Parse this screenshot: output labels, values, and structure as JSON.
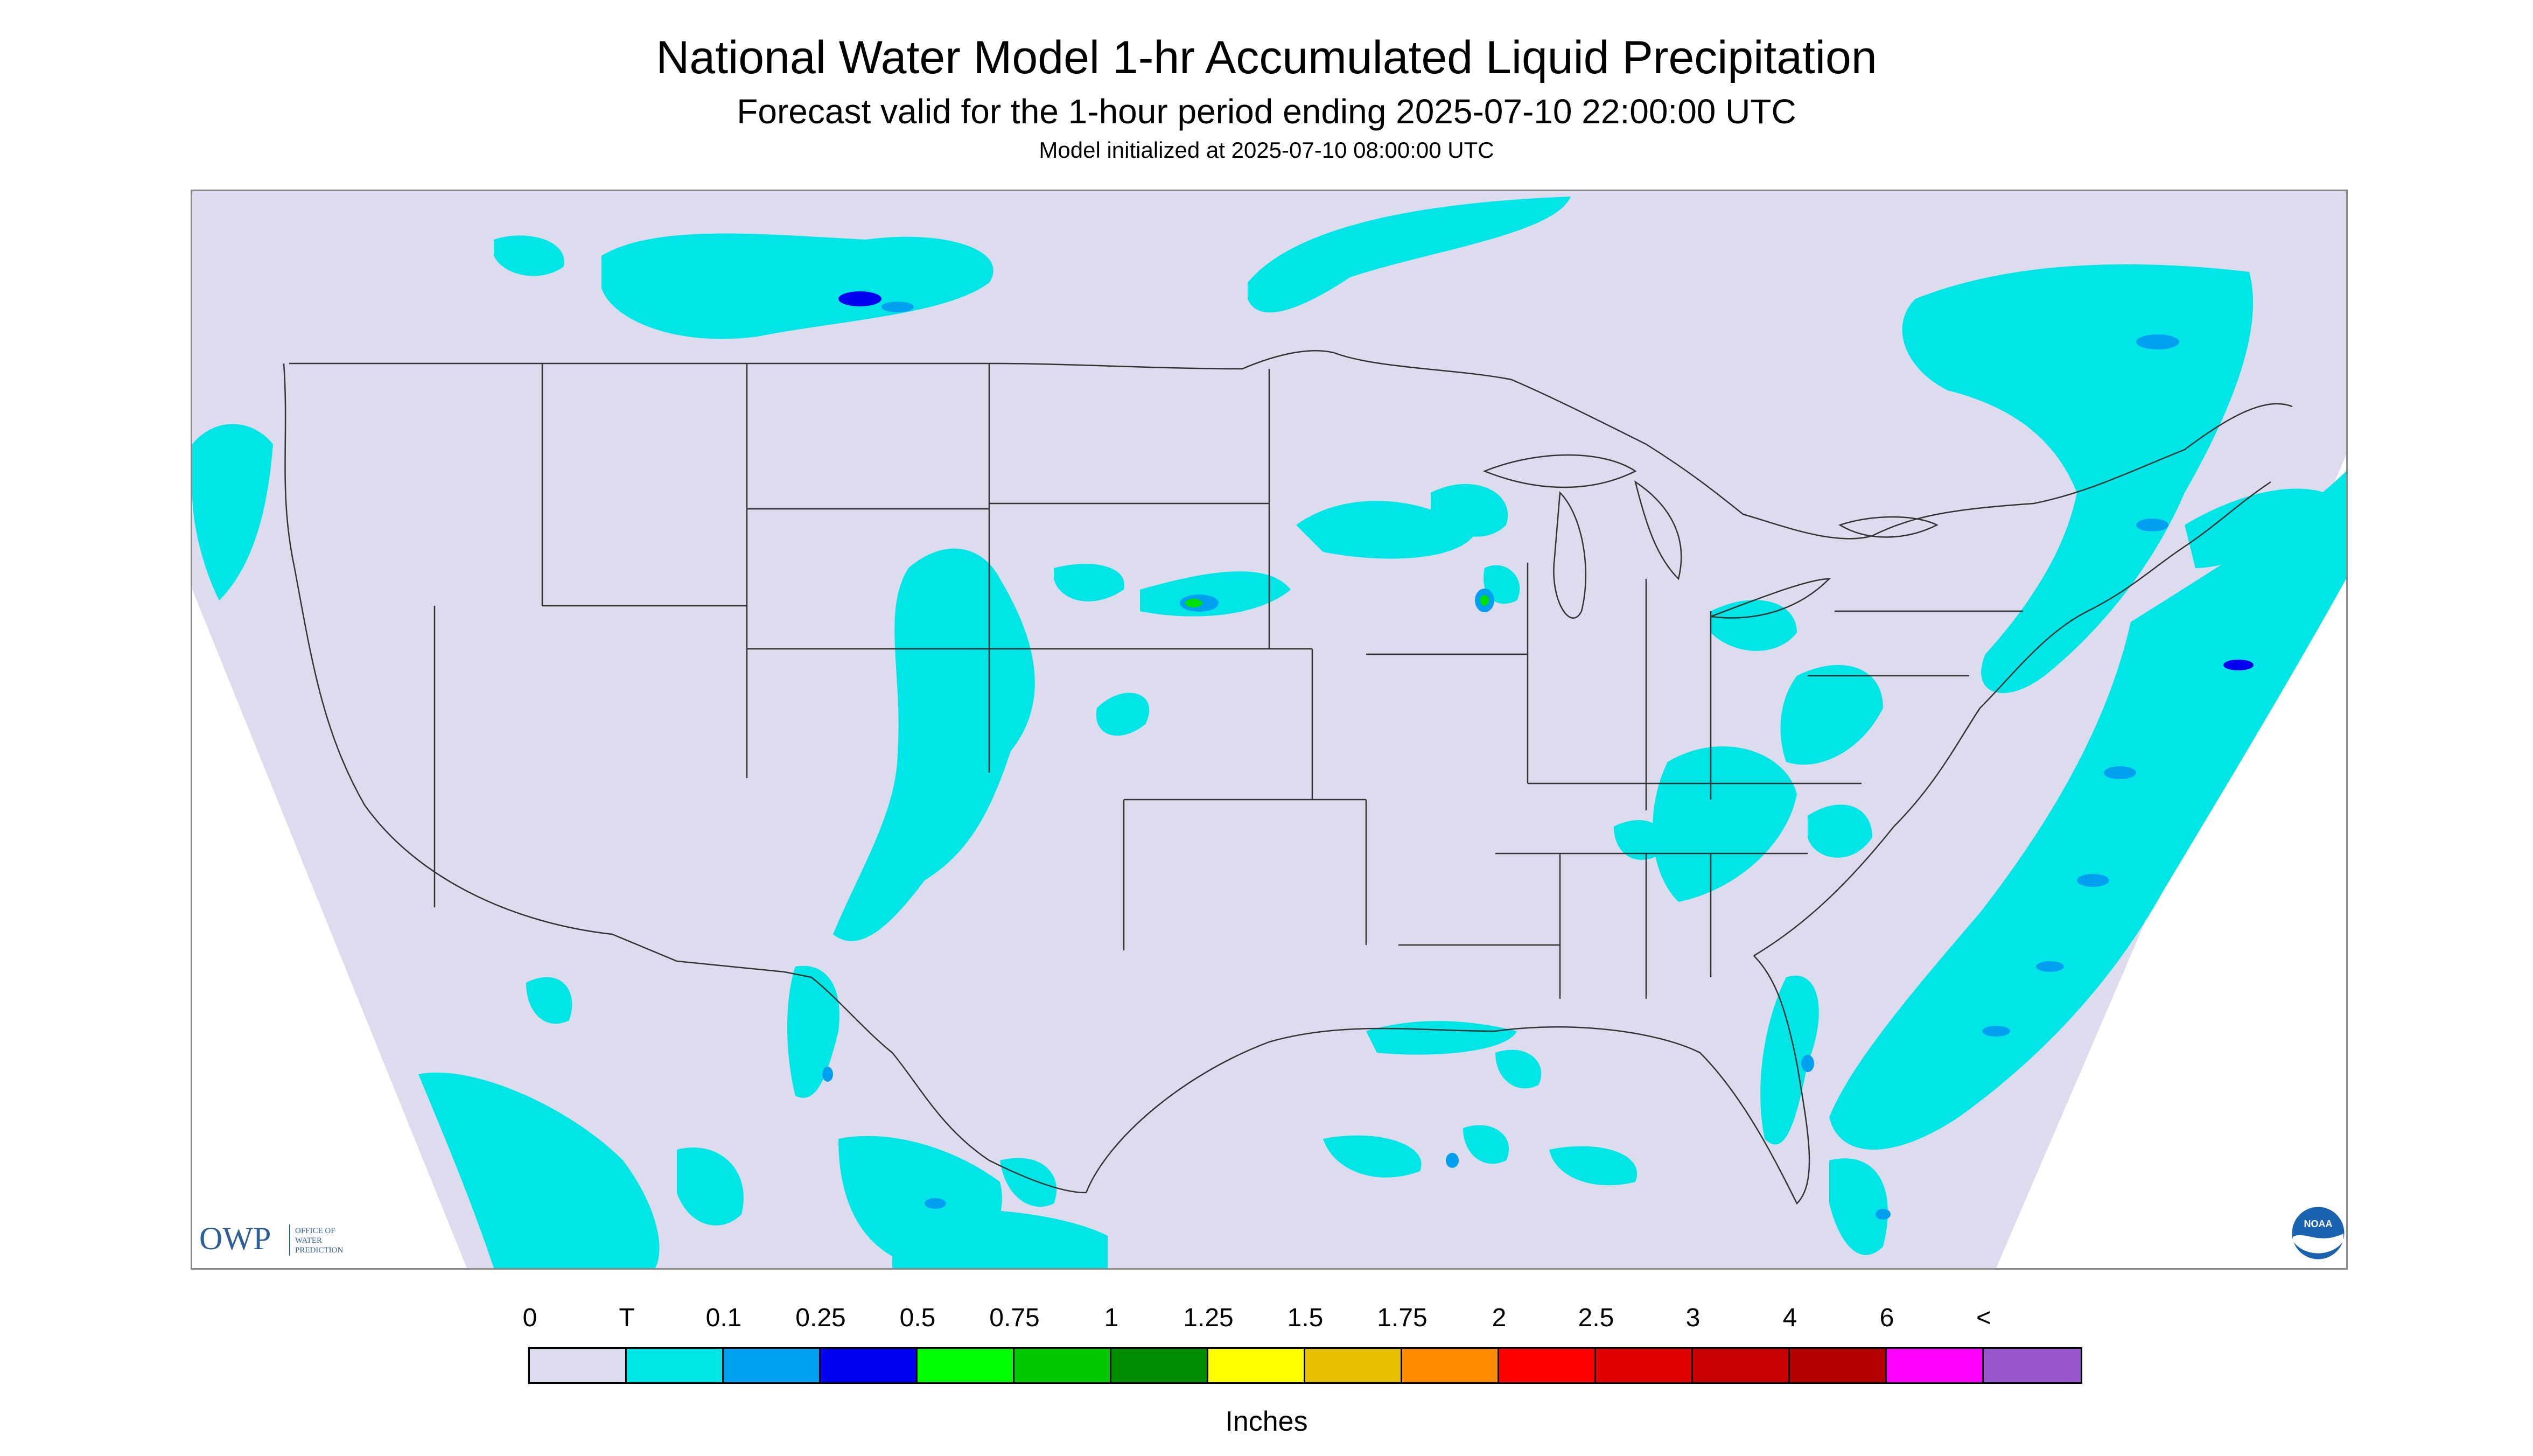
{
  "title": "National Water Model 1-hr Accumulated Liquid Precipitation",
  "subtitle": "Forecast valid for the 1-hour period ending 2025-07-10 22:00:00 UTC",
  "model_init": "Model initialized at 2025-07-10 08:00:00 UTC",
  "colors": {
    "background": "#dcdcee",
    "outside": "#ffffff",
    "trace": "#00e5e5",
    "light": "#00a0f0",
    "moderate": "#0000f0",
    "heavy": "#00e000",
    "borders": "#333333"
  },
  "logos": {
    "owp_letters": "OWP",
    "owp_text": [
      "OFFICE OF",
      "WATER",
      "PREDICTION"
    ],
    "noaa_text": "NOAA"
  },
  "legend": {
    "labels": [
      "0",
      "T",
      "0.1",
      "0.25",
      "0.5",
      "0.75",
      "1",
      "1.25",
      "1.5",
      "1.75",
      "2",
      "2.5",
      "3",
      "4",
      "6",
      "<"
    ],
    "colors": [
      "#dcdcee",
      "#00e5e5",
      "#00a0f0",
      "#0000f0",
      "#00ff00",
      "#00c800",
      "#008c00",
      "#ffff00",
      "#e6c000",
      "#ff8c00",
      "#ff0000",
      "#e00000",
      "#c80000",
      "#b40000",
      "#ff00ff",
      "#9955cc"
    ],
    "units": "Inches"
  }
}
